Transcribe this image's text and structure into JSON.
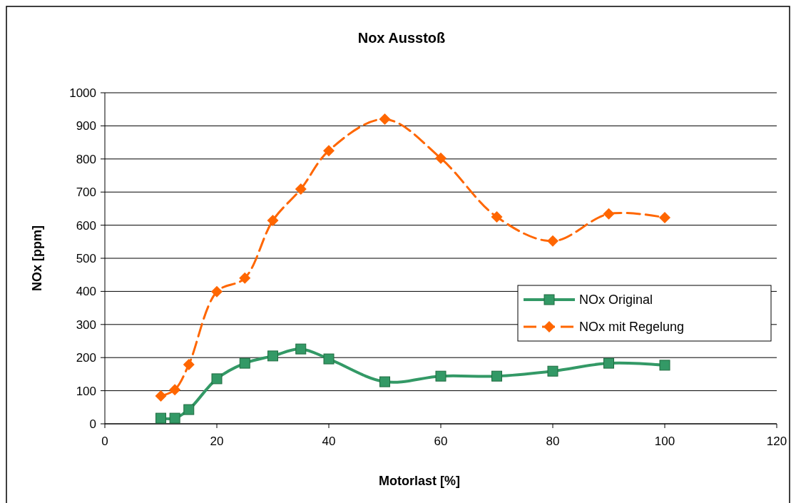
{
  "chart_data": {
    "type": "line",
    "title": "Nox Ausstoß",
    "xlabel": "Motorlast [%]",
    "ylabel": "NOx [ppm]",
    "xlim": [
      0,
      120
    ],
    "xticks": [
      0,
      20,
      40,
      60,
      80,
      100,
      120
    ],
    "ylim": [
      0,
      1000
    ],
    "yticks": [
      0,
      100,
      200,
      300,
      400,
      500,
      600,
      700,
      800,
      900,
      1000
    ],
    "grid": "y",
    "legend": "right",
    "series": [
      {
        "name": "NOx Original",
        "color": "#339966",
        "marker": "square",
        "line_style": "solid",
        "x": [
          10,
          12.5,
          15,
          20,
          25,
          30,
          35,
          40,
          50,
          60,
          70,
          80,
          90,
          100
        ],
        "values": [
          17,
          17,
          43,
          136,
          183,
          205,
          226,
          196,
          127,
          144,
          144,
          159,
          183,
          177
        ]
      },
      {
        "name": "NOx mit Regelung",
        "color": "#ff6600",
        "marker": "diamond",
        "line_style": "dashed",
        "x": [
          10,
          12.5,
          15,
          20,
          25,
          30,
          35,
          40,
          50,
          60,
          70,
          80,
          90,
          100
        ],
        "values": [
          84,
          103,
          179,
          399,
          440,
          614,
          709,
          825,
          920,
          802,
          625,
          552,
          634,
          623
        ]
      }
    ]
  }
}
